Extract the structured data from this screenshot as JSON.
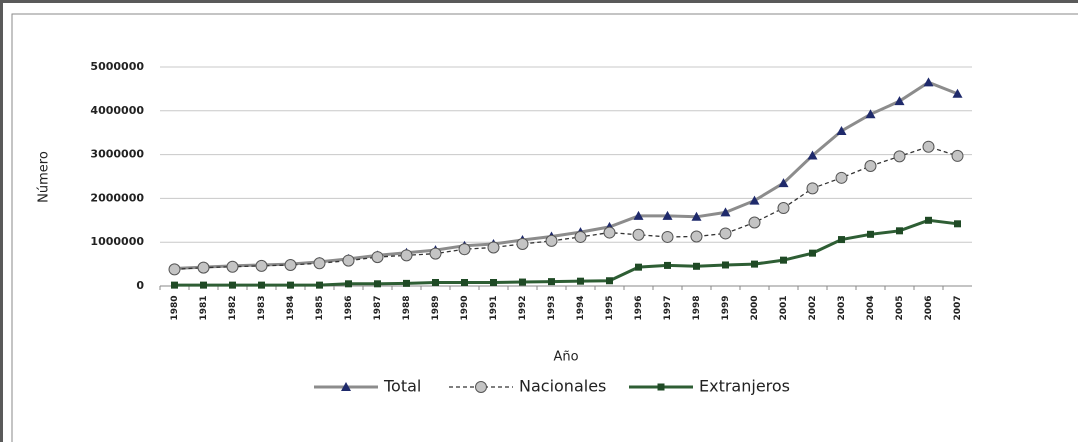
{
  "chart_data": {
    "type": "line",
    "x_label": "Año",
    "y_label": "Número",
    "categories": [
      "1980",
      "1981",
      "1982",
      "1983",
      "1984",
      "1985",
      "1986",
      "1987",
      "1988",
      "1989",
      "1990",
      "1991",
      "1992",
      "1993",
      "1994",
      "1995",
      "1996",
      "1997",
      "1998",
      "1999",
      "2000",
      "2001",
      "2002",
      "2003",
      "2004",
      "2005",
      "2006",
      "2007"
    ],
    "series": [
      {
        "name": "Total",
        "color": "#8c8c8c",
        "marker_color": "#1f2a6b",
        "marker": "triangle",
        "dash": false,
        "values": [
          400000,
          430000,
          460000,
          480000,
          500000,
          550000,
          620000,
          700000,
          760000,
          820000,
          920000,
          960000,
          1050000,
          1130000,
          1230000,
          1350000,
          1600000,
          1600000,
          1580000,
          1680000,
          1950000,
          2350000,
          2980000,
          3540000,
          3920000,
          4220000,
          4650000,
          4390000
        ]
      },
      {
        "name": "Nacionales",
        "color": "#333333",
        "marker_color": "#c4c4c4",
        "marker": "circle",
        "dash": true,
        "values": [
          380000,
          420000,
          440000,
          460000,
          480000,
          520000,
          580000,
          660000,
          700000,
          740000,
          840000,
          880000,
          960000,
          1030000,
          1120000,
          1220000,
          1170000,
          1120000,
          1130000,
          1200000,
          1450000,
          1780000,
          2230000,
          2470000,
          2740000,
          2960000,
          3180000,
          2970000
        ]
      },
      {
        "name": "Extranjeros",
        "color": "#2e5e34",
        "marker_color": "#1f4a25",
        "marker": "square",
        "dash": false,
        "values": [
          20000,
          20000,
          20000,
          20000,
          20000,
          20000,
          50000,
          50000,
          60000,
          80000,
          80000,
          80000,
          90000,
          100000,
          110000,
          120000,
          430000,
          470000,
          450000,
          480000,
          500000,
          590000,
          750000,
          1060000,
          1180000,
          1260000,
          1500000,
          1420000
        ]
      }
    ],
    "ylim": [
      0,
      5000000
    ],
    "yticks": [
      0,
      1000000,
      2000000,
      3000000,
      4000000,
      5000000
    ],
    "grid": true,
    "legend": "bottom"
  }
}
